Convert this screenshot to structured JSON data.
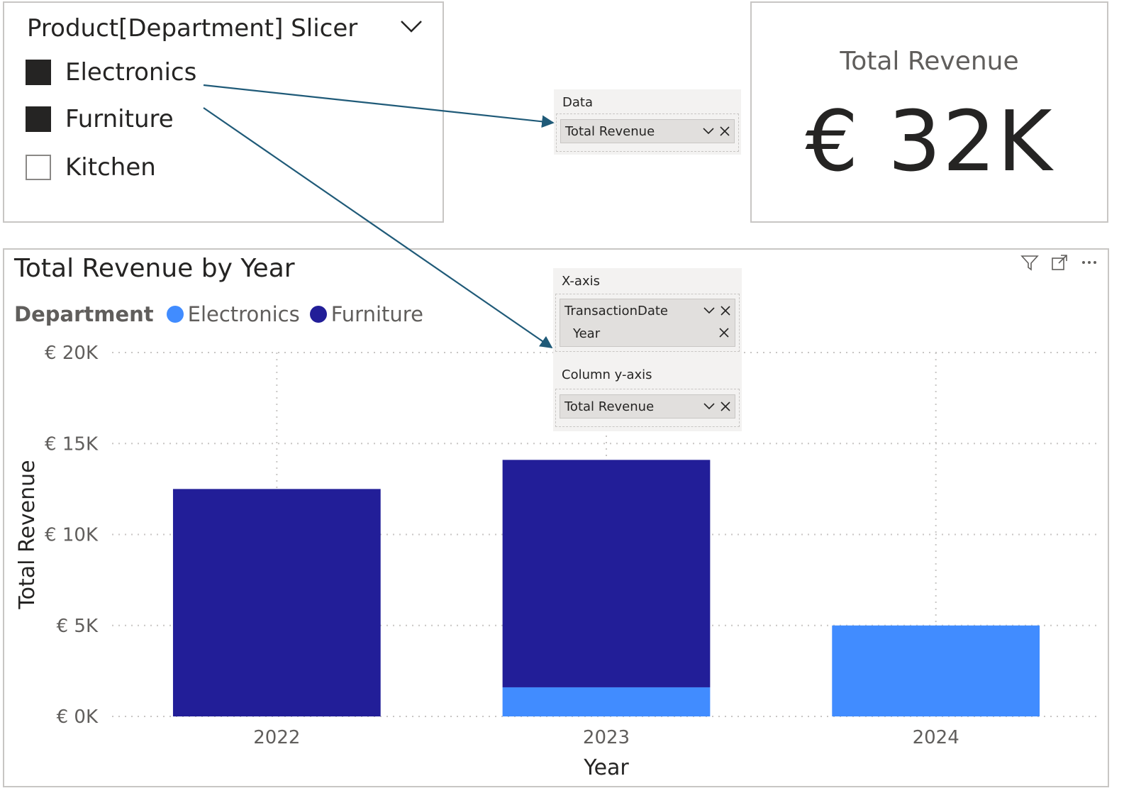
{
  "slicer": {
    "title": "Product[Department] Slicer",
    "items": [
      {
        "label": "Electronics",
        "checked": true
      },
      {
        "label": "Furniture",
        "checked": true
      },
      {
        "label": "Kitchen",
        "checked": false
      }
    ]
  },
  "card": {
    "title": "Total Revenue",
    "value": "€ 32K"
  },
  "card_wells": {
    "header": "Data",
    "field": "Total Revenue"
  },
  "chart_wells": {
    "x_header": "X-axis",
    "x_field": "TransactionDate",
    "x_sub": "Year",
    "y_header": "Column y-axis",
    "y_field": "Total Revenue"
  },
  "chart": {
    "title": "Total Revenue by Year",
    "legend_title": "Department",
    "legend": [
      {
        "name": "Electronics",
        "color": "#418cff"
      },
      {
        "name": "Furniture",
        "color": "#221e98"
      }
    ]
  },
  "chart_data": {
    "type": "bar",
    "stacked": true,
    "title": "Total Revenue by Year",
    "xlabel": "Year",
    "ylabel": "Total Revenue",
    "ylim": [
      0,
      20000
    ],
    "yticks": [
      {
        "value": 0,
        "label": "€ 0K"
      },
      {
        "value": 5000,
        "label": "€ 5K"
      },
      {
        "value": 10000,
        "label": "€ 10K"
      },
      {
        "value": 15000,
        "label": "€ 15K"
      },
      {
        "value": 20000,
        "label": "€ 20K"
      }
    ],
    "categories": [
      "2022",
      "2023",
      "2024"
    ],
    "series": [
      {
        "name": "Electronics",
        "color": "#418cff",
        "values": [
          0,
          1600,
          5000
        ]
      },
      {
        "name": "Furniture",
        "color": "#221e98",
        "values": [
          12500,
          12500,
          0
        ]
      }
    ],
    "grid": true,
    "legend_position": "top-left"
  }
}
